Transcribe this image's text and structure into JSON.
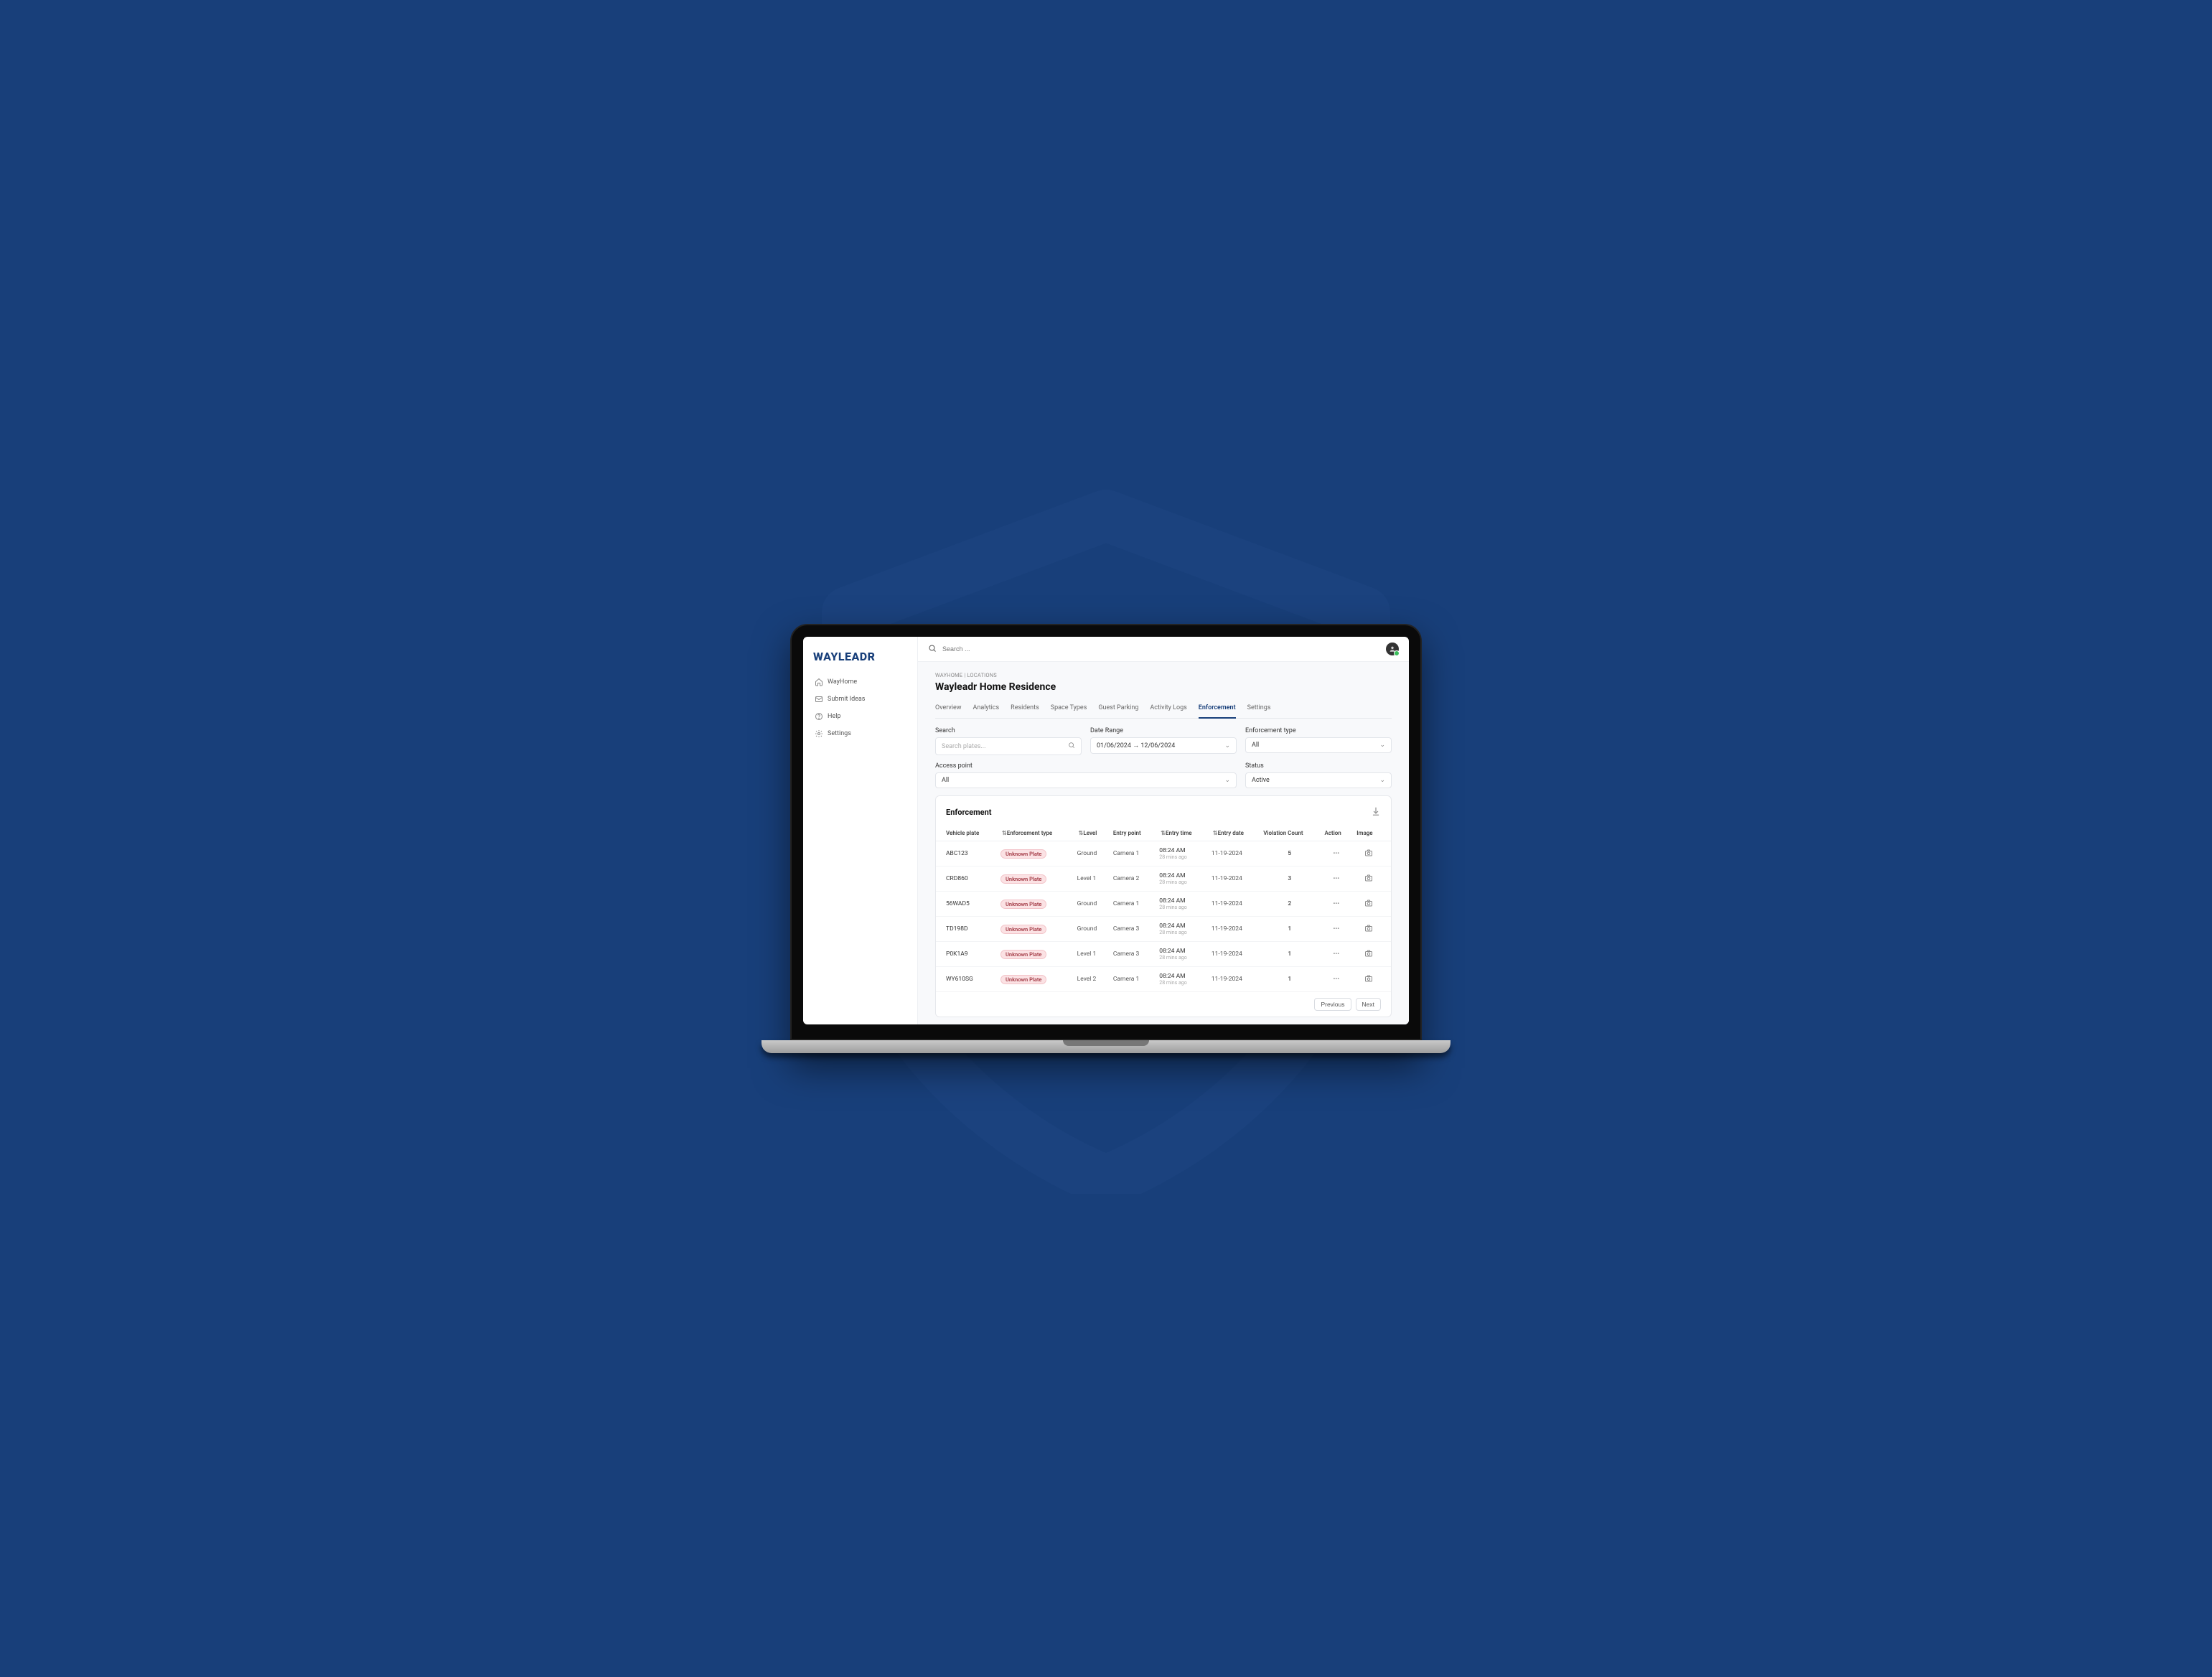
{
  "brand": {
    "logo_text": "WAYLEADR"
  },
  "sidebar": {
    "items": [
      {
        "label": "WayHome",
        "icon": "home-icon"
      },
      {
        "label": "Submit Ideas",
        "icon": "mail-icon"
      },
      {
        "label": "Help",
        "icon": "help-icon"
      },
      {
        "label": "Settings",
        "icon": "gear-icon"
      }
    ]
  },
  "topbar": {
    "search_placeholder": "Search ..."
  },
  "breadcrumb": "WAYHOME | LOCATIONS",
  "page_title": "Wayleadr Home Residence",
  "tabs": [
    {
      "label": "Overview",
      "active": false
    },
    {
      "label": "Analytics",
      "active": false
    },
    {
      "label": "Residents",
      "active": false
    },
    {
      "label": "Space Types",
      "active": false
    },
    {
      "label": "Guest Parking",
      "active": false
    },
    {
      "label": "Activity Logs",
      "active": false
    },
    {
      "label": "Enforcement",
      "active": true
    },
    {
      "label": "Settings",
      "active": false
    }
  ],
  "filters": {
    "search": {
      "label": "Search",
      "placeholder": "Search plates..."
    },
    "date_range": {
      "label": "Date Range",
      "value": "01/06/2024 → 12/06/2024"
    },
    "enforcement": {
      "label": "Enforcement type",
      "value": "All"
    },
    "access_point": {
      "label": "Access point",
      "value": "All"
    },
    "status": {
      "label": "Status",
      "value": "Active"
    }
  },
  "table": {
    "title": "Enforcement",
    "columns": [
      {
        "label": "Vehicle plate",
        "sortable": false
      },
      {
        "label": "Enforcement type",
        "sortable": true
      },
      {
        "label": "Level",
        "sortable": true
      },
      {
        "label": "Entry point",
        "sortable": false
      },
      {
        "label": "Entry time",
        "sortable": true
      },
      {
        "label": "Entry date",
        "sortable": true
      },
      {
        "label": "Violation Count",
        "sortable": false
      },
      {
        "label": "Action",
        "sortable": false
      },
      {
        "label": "Image",
        "sortable": false
      }
    ],
    "badge_text": "Unknown Plate",
    "rows": [
      {
        "plate": "ABC123",
        "level": "Ground",
        "entry_point": "Camera 1",
        "entry_time": "08:24 AM",
        "entry_ago": "28 mins ago",
        "entry_date": "11-19-2024",
        "count": "5"
      },
      {
        "plate": "CRD860",
        "level": "Level 1",
        "entry_point": "Camera 2",
        "entry_time": "08:24 AM",
        "entry_ago": "28 mins ago",
        "entry_date": "11-19-2024",
        "count": "3"
      },
      {
        "plate": "56WAD5",
        "level": "Ground",
        "entry_point": "Camera 1",
        "entry_time": "08:24 AM",
        "entry_ago": "28 mins ago",
        "entry_date": "11-19-2024",
        "count": "2"
      },
      {
        "plate": "TD198D",
        "level": "Ground",
        "entry_point": "Camera 3",
        "entry_time": "08:24 AM",
        "entry_ago": "28 mins ago",
        "entry_date": "11-19-2024",
        "count": "1"
      },
      {
        "plate": "P0K1A9",
        "level": "Level 1",
        "entry_point": "Camera 3",
        "entry_time": "08:24 AM",
        "entry_ago": "28 mins ago",
        "entry_date": "11-19-2024",
        "count": "1"
      },
      {
        "plate": "WY610SG",
        "level": "Level 2",
        "entry_point": "Camera 1",
        "entry_time": "08:24 AM",
        "entry_ago": "28 mins ago",
        "entry_date": "11-19-2024",
        "count": "1"
      }
    ],
    "pager": {
      "prev": "Previous",
      "next": "Next"
    }
  },
  "colors": {
    "background": "#183f7a",
    "shield_watermark": "#2d5596",
    "accent": "#183f7a",
    "badge_bg": "#fbe2e4",
    "badge_text": "#a33a45",
    "border": "#e6e8ec",
    "page_bg": "#f8f9fb"
  }
}
